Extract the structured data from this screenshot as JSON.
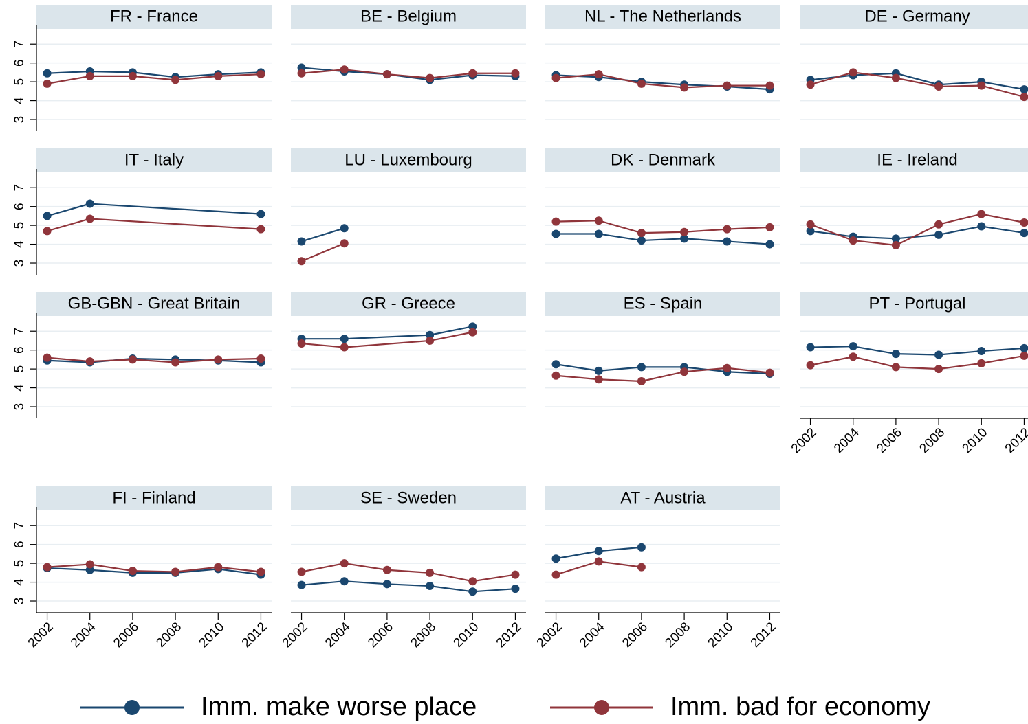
{
  "chart_data": [
    {
      "type": "line",
      "title": "FR - France",
      "x": [
        2002,
        2004,
        2006,
        2008,
        2010,
        2012
      ],
      "series": [
        {
          "color": "#1a476f",
          "values": [
            5.45,
            5.55,
            5.5,
            5.25,
            5.4,
            5.5
          ]
        },
        {
          "color": "#90353b",
          "values": [
            4.9,
            5.3,
            5.3,
            5.1,
            5.3,
            5.4
          ]
        }
      ],
      "xlim": [
        2001.5,
        2012.5
      ],
      "ylim": [
        2.6,
        7.7
      ],
      "yticks": [
        3,
        4,
        5,
        6,
        7
      ],
      "grid": true
    },
    {
      "type": "line",
      "title": "BE - Belgium",
      "x": [
        2002,
        2004,
        2006,
        2008,
        2010,
        2012
      ],
      "series": [
        {
          "color": "#1a476f",
          "values": [
            5.75,
            5.55,
            5.4,
            5.1,
            5.35,
            5.3
          ]
        },
        {
          "color": "#90353b",
          "values": [
            5.45,
            5.65,
            5.4,
            5.2,
            5.45,
            5.45
          ]
        }
      ],
      "xlim": [
        2001.5,
        2012.5
      ],
      "ylim": [
        2.6,
        7.7
      ],
      "yticks": [
        3,
        4,
        5,
        6,
        7
      ],
      "grid": true
    },
    {
      "type": "line",
      "title": "NL - The Netherlands",
      "x": [
        2002,
        2004,
        2006,
        2008,
        2010,
        2012
      ],
      "series": [
        {
          "color": "#1a476f",
          "values": [
            5.35,
            5.25,
            5.0,
            4.85,
            4.75,
            4.6
          ]
        },
        {
          "color": "#90353b",
          "values": [
            5.2,
            5.4,
            4.9,
            4.7,
            4.8,
            4.8
          ]
        }
      ],
      "xlim": [
        2001.5,
        2012.5
      ],
      "ylim": [
        2.6,
        7.7
      ],
      "yticks": [
        3,
        4,
        5,
        6,
        7
      ],
      "grid": true
    },
    {
      "type": "line",
      "title": "DE - Germany",
      "x": [
        2002,
        2004,
        2006,
        2008,
        2010,
        2012
      ],
      "series": [
        {
          "color": "#1a476f",
          "values": [
            5.1,
            5.35,
            5.45,
            4.85,
            5.0,
            4.6
          ]
        },
        {
          "color": "#90353b",
          "values": [
            4.85,
            5.5,
            5.2,
            4.75,
            4.8,
            4.2
          ]
        }
      ],
      "xlim": [
        2001.5,
        2012.5
      ],
      "ylim": [
        2.6,
        7.7
      ],
      "yticks": [
        3,
        4,
        5,
        6,
        7
      ],
      "grid": true
    },
    {
      "type": "line",
      "title": "IT - Italy",
      "x": [
        2002,
        2004,
        2012
      ],
      "series": [
        {
          "color": "#1a476f",
          "values": [
            5.5,
            6.15,
            5.6
          ]
        },
        {
          "color": "#90353b",
          "values": [
            4.7,
            5.35,
            4.8
          ]
        }
      ],
      "xlim": [
        2001.5,
        2012.5
      ],
      "ylim": [
        2.6,
        7.7
      ],
      "yticks": [
        3,
        4,
        5,
        6,
        7
      ],
      "grid": true
    },
    {
      "type": "line",
      "title": "LU - Luxembourg",
      "x": [
        2002,
        2004
      ],
      "series": [
        {
          "color": "#1a476f",
          "values": [
            4.15,
            4.85
          ]
        },
        {
          "color": "#90353b",
          "values": [
            3.1,
            4.05
          ]
        }
      ],
      "xlim": [
        2001.5,
        2012.5
      ],
      "ylim": [
        2.6,
        7.7
      ],
      "yticks": [
        3,
        4,
        5,
        6,
        7
      ],
      "grid": true
    },
    {
      "type": "line",
      "title": "DK - Denmark",
      "x": [
        2002,
        2004,
        2006,
        2008,
        2010,
        2012
      ],
      "series": [
        {
          "color": "#1a476f",
          "values": [
            4.55,
            4.55,
            4.2,
            4.3,
            4.15,
            4.0
          ]
        },
        {
          "color": "#90353b",
          "values": [
            5.2,
            5.25,
            4.6,
            4.65,
            4.8,
            4.9
          ]
        }
      ],
      "xlim": [
        2001.5,
        2012.5
      ],
      "ylim": [
        2.6,
        7.7
      ],
      "yticks": [
        3,
        4,
        5,
        6,
        7
      ],
      "grid": true
    },
    {
      "type": "line",
      "title": "IE - Ireland",
      "x": [
        2002,
        2004,
        2006,
        2008,
        2010,
        2012
      ],
      "series": [
        {
          "color": "#1a476f",
          "values": [
            4.7,
            4.4,
            4.3,
            4.5,
            4.95,
            4.6
          ]
        },
        {
          "color": "#90353b",
          "values": [
            5.05,
            4.2,
            3.95,
            5.05,
            5.6,
            5.15
          ]
        }
      ],
      "xlim": [
        2001.5,
        2012.5
      ],
      "ylim": [
        2.6,
        7.7
      ],
      "yticks": [
        3,
        4,
        5,
        6,
        7
      ],
      "grid": true
    },
    {
      "type": "line",
      "title": "GB-GBN - Great Britain",
      "x": [
        2002,
        2004,
        2006,
        2008,
        2010,
        2012
      ],
      "series": [
        {
          "color": "#1a476f",
          "values": [
            5.45,
            5.35,
            5.55,
            5.5,
            5.45,
            5.35
          ]
        },
        {
          "color": "#90353b",
          "values": [
            5.6,
            5.4,
            5.5,
            5.35,
            5.5,
            5.55
          ]
        }
      ],
      "xlim": [
        2001.5,
        2012.5
      ],
      "ylim": [
        2.6,
        7.7
      ],
      "yticks": [
        3,
        4,
        5,
        6,
        7
      ],
      "grid": true
    },
    {
      "type": "line",
      "title": "GR - Greece",
      "x": [
        2002,
        2004,
        2008,
        2010
      ],
      "series": [
        {
          "color": "#1a476f",
          "values": [
            6.6,
            6.6,
            6.8,
            7.25
          ]
        },
        {
          "color": "#90353b",
          "values": [
            6.35,
            6.15,
            6.5,
            6.95
          ]
        }
      ],
      "xlim": [
        2001.5,
        2012.5
      ],
      "ylim": [
        2.6,
        7.7
      ],
      "yticks": [
        3,
        4,
        5,
        6,
        7
      ],
      "grid": true
    },
    {
      "type": "line",
      "title": "ES - Spain",
      "x": [
        2002,
        2004,
        2006,
        2008,
        2010,
        2012
      ],
      "series": [
        {
          "color": "#1a476f",
          "values": [
            5.25,
            4.9,
            5.1,
            5.1,
            4.85,
            4.75
          ]
        },
        {
          "color": "#90353b",
          "values": [
            4.65,
            4.45,
            4.35,
            4.85,
            5.05,
            4.8
          ]
        }
      ],
      "xlim": [
        2001.5,
        2012.5
      ],
      "ylim": [
        2.6,
        7.7
      ],
      "yticks": [
        3,
        4,
        5,
        6,
        7
      ],
      "grid": true
    },
    {
      "type": "line",
      "title": "PT - Portugal",
      "x": [
        2002,
        2004,
        2006,
        2008,
        2010,
        2012
      ],
      "series": [
        {
          "color": "#1a476f",
          "values": [
            6.15,
            6.2,
            5.8,
            5.75,
            5.95,
            6.1
          ]
        },
        {
          "color": "#90353b",
          "values": [
            5.2,
            5.65,
            5.1,
            5.0,
            5.3,
            5.7
          ]
        }
      ],
      "xlim": [
        2001.5,
        2012.5
      ],
      "xticks": [
        2002,
        2004,
        2006,
        2008,
        2010,
        2012
      ],
      "ylim": [
        2.6,
        7.7
      ],
      "yticks": [
        3,
        4,
        5,
        6,
        7
      ],
      "grid": true
    },
    {
      "type": "line",
      "title": "FI - Finland",
      "x": [
        2002,
        2004,
        2006,
        2008,
        2010,
        2012
      ],
      "series": [
        {
          "color": "#1a476f",
          "values": [
            4.75,
            4.65,
            4.5,
            4.5,
            4.7,
            4.4
          ]
        },
        {
          "color": "#90353b",
          "values": [
            4.8,
            4.95,
            4.6,
            4.55,
            4.8,
            4.55
          ]
        }
      ],
      "xlim": [
        2001.5,
        2012.5
      ],
      "xticks": [
        2002,
        2004,
        2006,
        2008,
        2010,
        2012
      ],
      "ylim": [
        2.6,
        7.7
      ],
      "yticks": [
        3,
        4,
        5,
        6,
        7
      ],
      "grid": true
    },
    {
      "type": "line",
      "title": "SE - Sweden",
      "x": [
        2002,
        2004,
        2006,
        2008,
        2010,
        2012
      ],
      "series": [
        {
          "color": "#1a476f",
          "values": [
            3.85,
            4.05,
            3.9,
            3.8,
            3.5,
            3.65
          ]
        },
        {
          "color": "#90353b",
          "values": [
            4.55,
            5.0,
            4.65,
            4.5,
            4.05,
            4.4
          ]
        }
      ],
      "xlim": [
        2001.5,
        2012.5
      ],
      "xticks": [
        2002,
        2004,
        2006,
        2008,
        2010,
        2012
      ],
      "ylim": [
        2.6,
        7.7
      ],
      "yticks": [
        3,
        4,
        5,
        6,
        7
      ],
      "grid": true
    },
    {
      "type": "line",
      "title": "AT - Austria",
      "x": [
        2002,
        2004,
        2006
      ],
      "series": [
        {
          "color": "#1a476f",
          "values": [
            5.25,
            5.65,
            5.85
          ]
        },
        {
          "color": "#90353b",
          "values": [
            4.4,
            5.1,
            4.8
          ]
        }
      ],
      "xlim": [
        2001.5,
        2012.5
      ],
      "xticks": [
        2002,
        2004,
        2006,
        2008,
        2010,
        2012
      ],
      "ylim": [
        2.6,
        7.7
      ],
      "yticks": [
        3,
        4,
        5,
        6,
        7
      ],
      "grid": true
    }
  ],
  "legend": [
    {
      "name": "Imm. make worse place",
      "color": "#1a476f"
    },
    {
      "name": "Imm. bad for economy",
      "color": "#90353b"
    }
  ]
}
